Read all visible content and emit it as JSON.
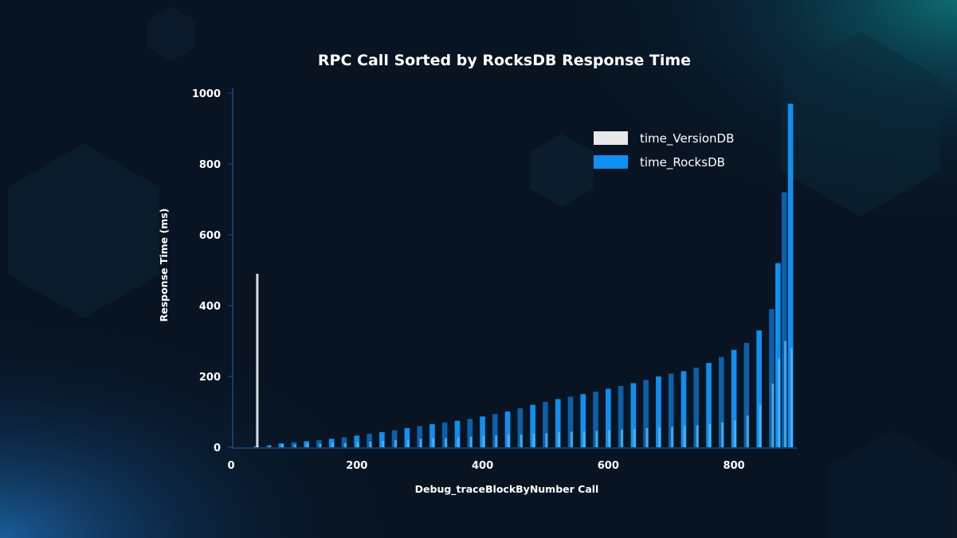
{
  "chart_data": {
    "type": "bar",
    "title": "RPC Call Sorted by RocksDB Response Time",
    "xlabel": "Debug_traceBlockByNumber Call",
    "ylabel": "Response Time (ms)",
    "xlim": [
      0,
      900
    ],
    "ylim": [
      0,
      1000
    ],
    "x_ticks": [
      "0",
      "200",
      "400",
      "600",
      "800"
    ],
    "y_ticks": [
      "0",
      "200",
      "400",
      "600",
      "800",
      "1000"
    ],
    "grid": false,
    "legend_position": "top-right",
    "colors": {
      "background": "#081422",
      "axis": "#1b4a78",
      "time_VersionDB": "#e6e8ea",
      "time_RocksDB": "#0f8ff0",
      "time_RocksDB_dark": "#0c5fa8",
      "version_overlay": "#4fb8f5"
    },
    "series": [
      {
        "name": "time_VersionDB",
        "x": [
          40,
          60,
          80,
          100,
          120,
          140,
          160,
          180,
          200,
          220,
          240,
          260,
          280,
          300,
          320,
          340,
          360,
          380,
          400,
          420,
          440,
          460,
          480,
          500,
          520,
          540,
          560,
          580,
          600,
          620,
          640,
          660,
          680,
          700,
          720,
          740,
          760,
          780,
          800,
          820,
          840,
          860,
          870,
          880,
          890
        ],
        "values": [
          490,
          5,
          8,
          8,
          10,
          10,
          12,
          12,
          14,
          16,
          18,
          20,
          22,
          24,
          25,
          26,
          28,
          30,
          32,
          34,
          35,
          36,
          38,
          40,
          42,
          44,
          45,
          46,
          48,
          50,
          52,
          54,
          56,
          58,
          60,
          62,
          65,
          70,
          75,
          90,
          120,
          180,
          250,
          300,
          280
        ]
      },
      {
        "name": "time_RocksDB",
        "x": [
          40,
          60,
          80,
          100,
          120,
          140,
          160,
          180,
          200,
          220,
          240,
          260,
          280,
          300,
          320,
          340,
          360,
          380,
          400,
          420,
          440,
          460,
          480,
          500,
          520,
          540,
          560,
          580,
          600,
          620,
          640,
          660,
          680,
          700,
          720,
          740,
          760,
          780,
          800,
          820,
          840,
          860,
          870,
          880,
          890
        ],
        "values": [
          3,
          6,
          11,
          14,
          17,
          20,
          24,
          28,
          33,
          38,
          43,
          48,
          54,
          60,
          65,
          70,
          75,
          80,
          87,
          94,
          101,
          110,
          120,
          128,
          136,
          143,
          150,
          157,
          165,
          173,
          181,
          190,
          200,
          208,
          215,
          225,
          238,
          255,
          275,
          295,
          330,
          390,
          520,
          720,
          970
        ]
      }
    ]
  }
}
